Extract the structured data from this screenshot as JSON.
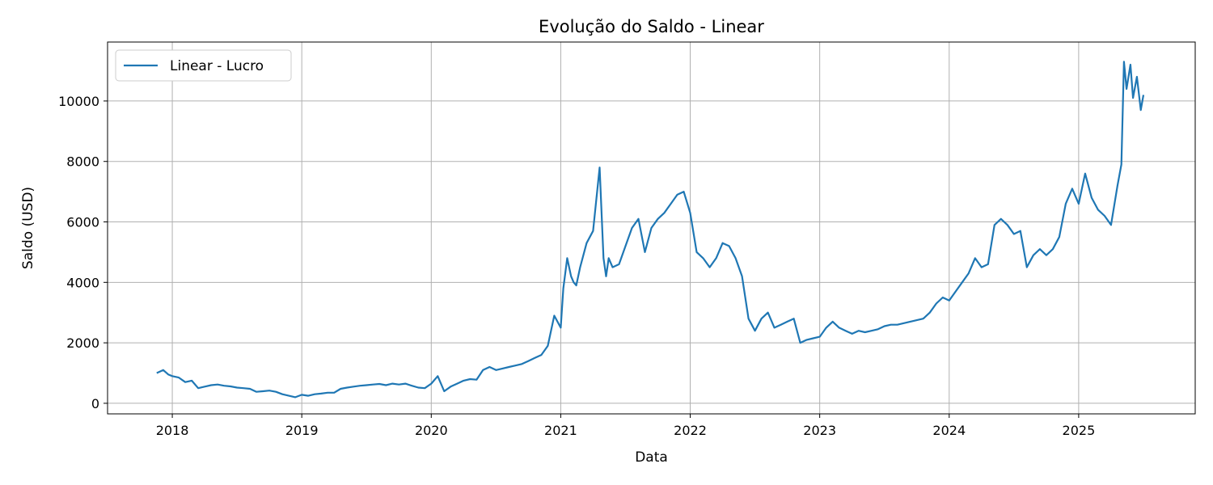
{
  "chart_data": {
    "type": "line",
    "title": "Evolução do Saldo - Linear",
    "xlabel": "Data",
    "ylabel": "Saldo (USD)",
    "xlim": [
      2017.5,
      2025.9
    ],
    "ylim": [
      -350,
      11950
    ],
    "x_ticks": [
      2018,
      2019,
      2020,
      2021,
      2022,
      2023,
      2024,
      2025
    ],
    "x_tick_labels": [
      "2018",
      "2019",
      "2020",
      "2021",
      "2022",
      "2023",
      "2024",
      "2025"
    ],
    "y_ticks": [
      0,
      2000,
      4000,
      6000,
      8000,
      10000
    ],
    "y_tick_labels": [
      "0",
      "2000",
      "4000",
      "6000",
      "8000",
      "10000"
    ],
    "grid": true,
    "legend_position": "top-left",
    "series": [
      {
        "name": "Linear - Lucro",
        "color": "#1f77b4",
        "x": [
          2017.88,
          2017.93,
          2017.97,
          2018.0,
          2018.05,
          2018.1,
          2018.15,
          2018.2,
          2018.25,
          2018.3,
          2018.35,
          2018.4,
          2018.45,
          2018.5,
          2018.55,
          2018.6,
          2018.65,
          2018.7,
          2018.75,
          2018.8,
          2018.85,
          2018.9,
          2018.95,
          2019.0,
          2019.05,
          2019.1,
          2019.15,
          2019.2,
          2019.25,
          2019.3,
          2019.35,
          2019.4,
          2019.45,
          2019.5,
          2019.55,
          2019.6,
          2019.65,
          2019.7,
          2019.75,
          2019.8,
          2019.85,
          2019.9,
          2019.95,
          2020.0,
          2020.05,
          2020.1,
          2020.15,
          2020.2,
          2020.25,
          2020.3,
          2020.35,
          2020.4,
          2020.45,
          2020.5,
          2020.55,
          2020.6,
          2020.65,
          2020.7,
          2020.75,
          2020.8,
          2020.85,
          2020.9,
          2020.95,
          2021.0,
          2021.02,
          2021.05,
          2021.08,
          2021.1,
          2021.12,
          2021.15,
          2021.2,
          2021.25,
          2021.3,
          2021.33,
          2021.35,
          2021.37,
          2021.4,
          2021.45,
          2021.5,
          2021.55,
          2021.6,
          2021.65,
          2021.7,
          2021.75,
          2021.8,
          2021.85,
          2021.9,
          2021.95,
          2022.0,
          2022.05,
          2022.1,
          2022.15,
          2022.2,
          2022.25,
          2022.3,
          2022.35,
          2022.4,
          2022.45,
          2022.5,
          2022.55,
          2022.6,
          2022.65,
          2022.7,
          2022.75,
          2022.8,
          2022.85,
          2022.9,
          2022.95,
          2023.0,
          2023.05,
          2023.1,
          2023.15,
          2023.2,
          2023.25,
          2023.3,
          2023.35,
          2023.4,
          2023.45,
          2023.5,
          2023.55,
          2023.6,
          2023.65,
          2023.7,
          2023.75,
          2023.8,
          2023.85,
          2023.9,
          2023.95,
          2024.0,
          2024.05,
          2024.1,
          2024.15,
          2024.2,
          2024.25,
          2024.3,
          2024.35,
          2024.4,
          2024.45,
          2024.5,
          2024.55,
          2024.6,
          2024.65,
          2024.7,
          2024.75,
          2024.8,
          2024.85,
          2024.9,
          2024.95,
          2025.0,
          2025.05,
          2025.1,
          2025.15,
          2025.2,
          2025.25,
          2025.3,
          2025.33,
          2025.35,
          2025.37,
          2025.4,
          2025.42,
          2025.45,
          2025.48,
          2025.5
        ],
        "y": [
          1000,
          1100,
          950,
          900,
          850,
          700,
          750,
          500,
          550,
          600,
          620,
          580,
          560,
          520,
          500,
          480,
          380,
          400,
          420,
          380,
          300,
          250,
          200,
          280,
          250,
          300,
          320,
          350,
          350,
          480,
          520,
          550,
          580,
          600,
          620,
          640,
          600,
          650,
          620,
          650,
          580,
          520,
          500,
          650,
          900,
          400,
          550,
          650,
          750,
          800,
          780,
          1100,
          1200,
          1100,
          1150,
          1200,
          1250,
          1300,
          1400,
          1500,
          1600,
          1900,
          2900,
          2500,
          3800,
          4800,
          4200,
          4000,
          3900,
          4500,
          5300,
          5700,
          7800,
          4800,
          4200,
          4800,
          4500,
          4600,
          5200,
          5800,
          6100,
          5000,
          5800,
          6100,
          6300,
          6600,
          6900,
          7000,
          6300,
          5000,
          4800,
          4500,
          4800,
          5300,
          5200,
          4800,
          4200,
          2800,
          2400,
          2800,
          3000,
          2500,
          2600,
          2700,
          2800,
          2000,
          2100,
          2150,
          2200,
          2500,
          2700,
          2500,
          2400,
          2300,
          2400,
          2350,
          2400,
          2450,
          2550,
          2600,
          2600,
          2650,
          2700,
          2750,
          2800,
          3000,
          3300,
          3500,
          3400,
          3700,
          4000,
          4300,
          4800,
          4500,
          4600,
          5900,
          6100,
          5900,
          5600,
          5700,
          4500,
          4900,
          5100,
          4900,
          5100,
          5500,
          6600,
          7100,
          6600,
          7600,
          6800,
          6400,
          6200,
          5900,
          7200,
          7900,
          11300,
          10400,
          11200,
          10100,
          10800,
          9700,
          10200
        ]
      }
    ]
  }
}
